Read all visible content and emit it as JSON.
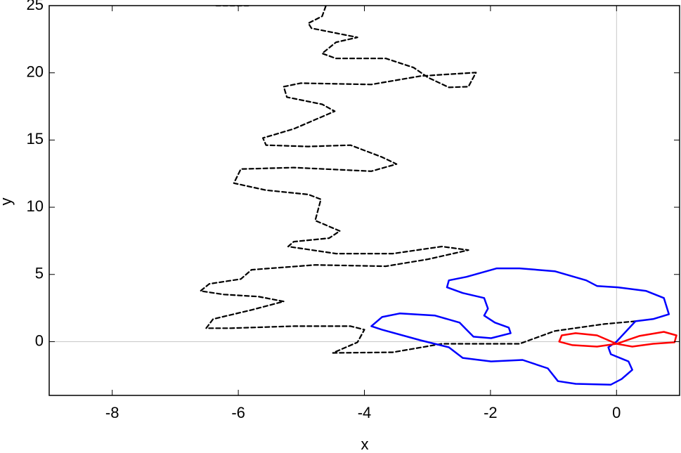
{
  "chart_data": {
    "type": "line",
    "x_label": "x",
    "y_label": "y",
    "xlim": [
      -9,
      1
    ],
    "ylim": [
      -4,
      25
    ],
    "xticks": [
      -8,
      -6,
      -4,
      -2,
      0
    ],
    "yticks": [
      0,
      5,
      10,
      15,
      20,
      25
    ],
    "axes_through_origin": true,
    "series": [
      {
        "color": "#000000",
        "dashed": true,
        "x": [
          0.3,
          -0.2,
          -0.98,
          -1.54,
          -2.21,
          -2.77,
          -3.55,
          -4.5,
          -4.11,
          -4.0,
          -4.22,
          -5.12,
          -6.12,
          -6.51,
          -6.4,
          -5.79,
          -5.28,
          -5.68,
          -6.23,
          -6.6,
          -6.46,
          -5.96,
          -5.79,
          -4.78,
          -3.66,
          -2.99,
          -2.35,
          -2.77,
          -3.55,
          -4.45,
          -5.21,
          -5.12,
          -4.56,
          -4.39,
          -4.78,
          -4.69,
          -4.89,
          -5.56,
          -6.07,
          -5.96,
          -5.12,
          -3.89,
          -3.49,
          -3.72,
          -4.22,
          -4.89,
          -5.56,
          -5.61,
          -5.12,
          -4.47,
          -4.67,
          -5.23,
          -5.28,
          -5.01,
          -3.89,
          -3.11,
          -2.23,
          -2.35,
          -2.66,
          -2.99,
          -3.22,
          -3.66,
          -4.45,
          -4.67,
          -4.45,
          -4.11,
          -4.84,
          -4.89,
          -4.67,
          -4.61,
          null,
          -6.35,
          -5.84
        ],
        "values": [
          1.52,
          1.31,
          0.79,
          -0.16,
          -0.16,
          -0.16,
          -0.79,
          -0.84,
          -0.05,
          0.89,
          1.15,
          1.15,
          1.0,
          1.0,
          1.68,
          2.36,
          2.99,
          3.35,
          3.51,
          3.77,
          4.3,
          4.66,
          5.35,
          5.71,
          5.61,
          6.13,
          6.81,
          7.08,
          6.55,
          6.55,
          7.08,
          7.44,
          7.7,
          8.23,
          9.01,
          10.59,
          10.95,
          11.27,
          11.79,
          12.84,
          12.95,
          12.68,
          13.21,
          13.73,
          14.62,
          14.52,
          14.62,
          15.15,
          15.83,
          17.14,
          17.66,
          18.19,
          18.97,
          19.23,
          19.13,
          19.76,
          20.02,
          18.97,
          18.92,
          19.65,
          20.39,
          21.07,
          21.07,
          21.44,
          22.27,
          22.64,
          23.32,
          23.69,
          24.21,
          25.0,
          null,
          25.0,
          25.0
        ]
      },
      {
        "color": "#0000ff",
        "dashed": false,
        "x": [
          0,
          0.3,
          0.58,
          0.83,
          0.75,
          0.47,
          0.02,
          -0.31,
          -0.48,
          -0.98,
          -1.54,
          -1.9,
          -2.38,
          -2.66,
          -2.69,
          -2.44,
          -2.1,
          -2.04,
          -2.1,
          -1.93,
          -1.71,
          -1.68,
          -1.99,
          -2.27,
          -2.38,
          -2.49,
          -2.88,
          -3.44,
          -3.72,
          -3.89,
          -3.72,
          -3.11,
          -2.66,
          -2.44,
          -1.99,
          -1.49,
          -1.09,
          -0.93,
          -0.65,
          -0.09,
          0.08,
          0.25,
          0.19,
          -0.09,
          -0.13,
          0
        ],
        "values": [
          0,
          1.52,
          1.68,
          2.04,
          3.25,
          3.77,
          4.04,
          4.14,
          4.56,
          5.24,
          5.45,
          5.45,
          4.82,
          4.56,
          4.04,
          3.62,
          3.25,
          2.46,
          1.94,
          1.42,
          1.05,
          0.63,
          0.26,
          0.37,
          0.89,
          1.42,
          1.94,
          2.1,
          1.83,
          1.15,
          0.89,
          0.1,
          -0.42,
          -1.21,
          -1.47,
          -1.36,
          -1.99,
          -2.94,
          -3.14,
          -3.2,
          -2.78,
          -2.1,
          -1.47,
          -0.94,
          -0.42,
          0
        ]
      },
      {
        "color": "#ff0000",
        "dashed": false,
        "x": [
          0,
          -0.31,
          -0.65,
          -0.87,
          -0.91,
          -0.7,
          -0.31,
          0,
          0.36,
          0.75,
          0.95,
          0.92,
          0.58,
          0.25,
          0
        ],
        "values": [
          -0.16,
          0.47,
          0.63,
          0.47,
          0,
          -0.26,
          -0.37,
          -0.16,
          0.42,
          0.73,
          0.47,
          -0.05,
          -0.16,
          -0.37,
          -0.16
        ]
      }
    ]
  }
}
